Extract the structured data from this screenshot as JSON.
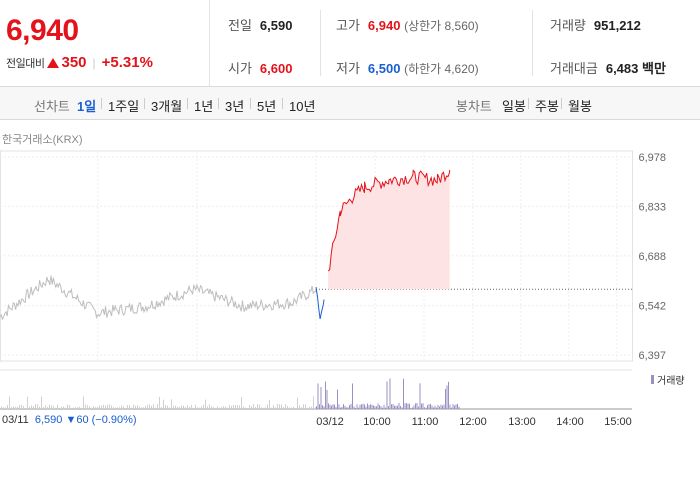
{
  "header": {
    "price": "6,940",
    "change_label": "전일대비",
    "change_value": "350",
    "change_pct": "+5.31%"
  },
  "stats": {
    "prev_close": {
      "label": "전일",
      "value": "6,590"
    },
    "open": {
      "label": "시가",
      "value": "6,600"
    },
    "high": {
      "label": "고가",
      "value": "6,940",
      "extra": "(상한가 8,560)"
    },
    "low": {
      "label": "저가",
      "value": "6,500",
      "extra": "(하한가 4,620)"
    },
    "volume": {
      "label": "거래량",
      "value": "951,212"
    },
    "amount": {
      "label": "거래대금",
      "value": "6,483 백만"
    }
  },
  "tabs": {
    "line_label": "선차트",
    "line": [
      "1일",
      "1주일",
      "3개월",
      "1년",
      "3년",
      "5년",
      "10년"
    ],
    "active": "1일",
    "candle_label": "봉차트",
    "candle": [
      "일봉",
      "주봉",
      "월봉"
    ]
  },
  "exchange": "한국거래소(KRX)",
  "chart_data": {
    "type": "line",
    "y_ticks": [
      "6,978",
      "6,833",
      "6,688",
      "6,542",
      "6,397"
    ],
    "x_ticks": [
      "03/11",
      "03/12",
      "10:00",
      "11:00",
      "12:00",
      "13:00",
      "14:00",
      "15:00"
    ],
    "ylim": [
      6397,
      6978
    ],
    "prev_close_line": 6590,
    "series": [
      {
        "name": "",
        "color": "#bdbdbd",
        "x": [
          "03/11 09:00",
          "03/11 10:00",
          "03/11 11:00",
          "03/11 12:00",
          "03/11 13:00",
          "03/11 14:00",
          "03/11 15:00",
          "03/11 15:30"
        ],
        "values": [
          6510,
          6620,
          6520,
          6540,
          6590,
          6540,
          6550,
          6590
        ]
      },
      {
        "name": "",
        "color": "#1a5fd1",
        "x": [
          "03/12 09:00",
          "03/12 09:05",
          "03/12 09:10"
        ],
        "values": [
          6600,
          6500,
          6560
        ]
      },
      {
        "name": "",
        "color": "#e3121b",
        "x": [
          "03/12 09:15",
          "03/12 09:30",
          "03/12 09:45",
          "03/12 10:00",
          "03/12 10:30",
          "03/12 11:00",
          "03/12 11:30",
          "03/12 11:45"
        ],
        "values": [
          6640,
          6820,
          6860,
          6890,
          6910,
          6920,
          6910,
          6940
        ]
      }
    ],
    "volume_legend": "거래량",
    "prev_day_info": {
      "date": "03/11",
      "close": "6,590",
      "change": "▼60",
      "pct": "(−0.90%)"
    }
  }
}
